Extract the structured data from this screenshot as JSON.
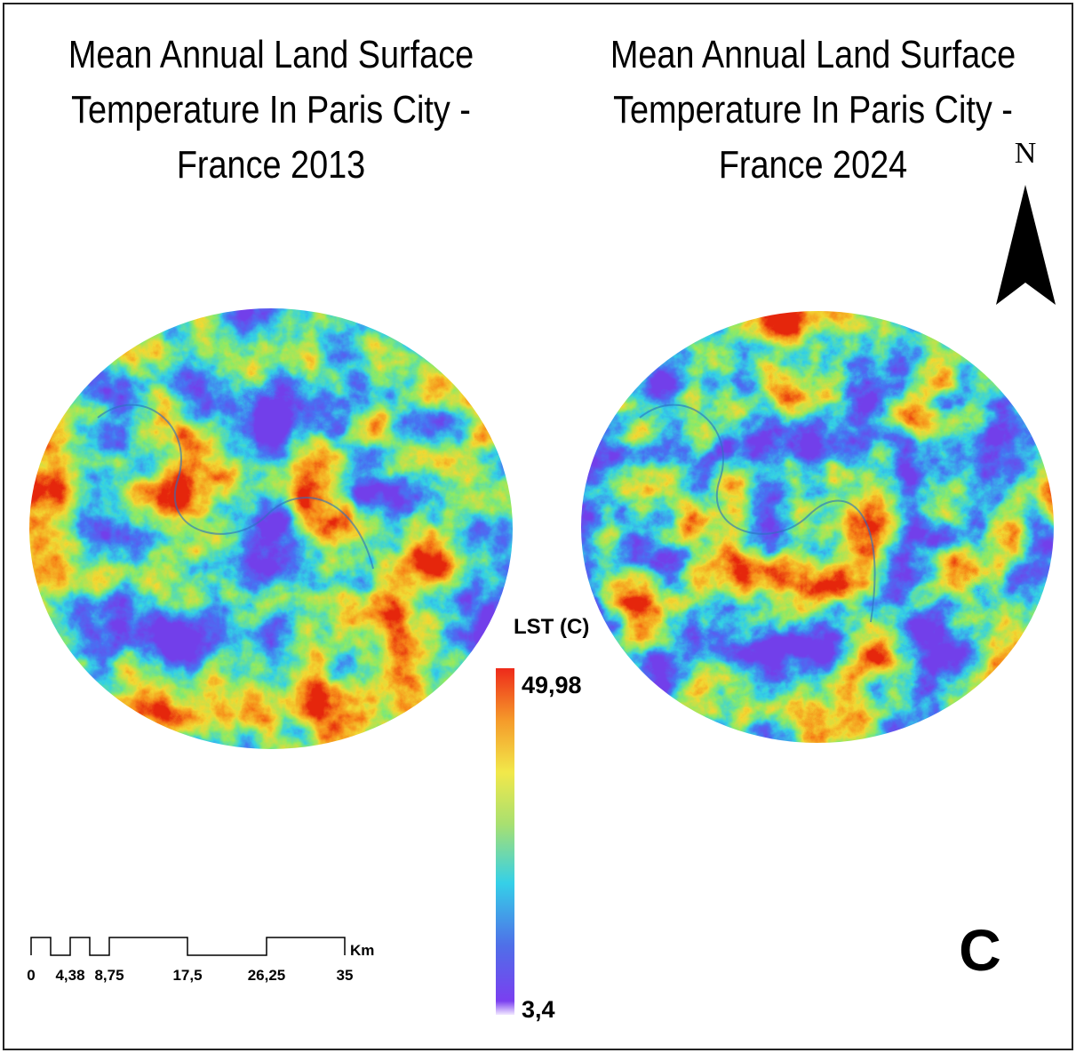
{
  "maps": [
    {
      "title_lines": [
        "Mean Annual Land Surface",
        "Temperature In Paris City -",
        "France 2013"
      ]
    },
    {
      "title_lines": [
        "Mean Annual Land Surface",
        "Temperature In Paris City -",
        "France 2024"
      ]
    }
  ],
  "north_label": "N",
  "legend": {
    "title": "LST (C)",
    "max_label": "49,98",
    "min_label": "3,4"
  },
  "scale_bar": {
    "labels": [
      "0",
      "4,38",
      "8,75",
      "17,5",
      "26,25",
      "35"
    ],
    "unit": "Km"
  },
  "panel_letter": "C"
}
